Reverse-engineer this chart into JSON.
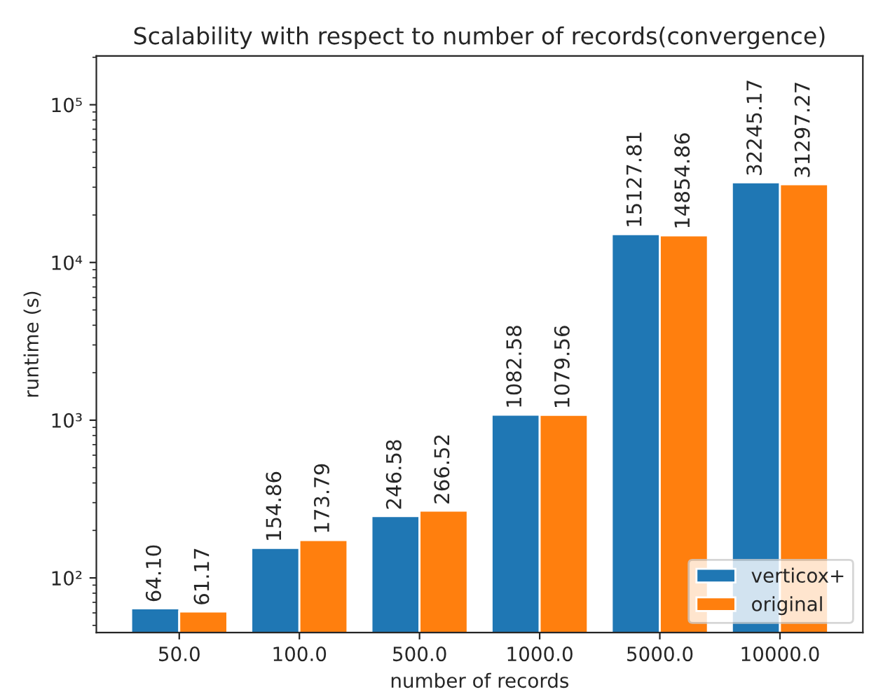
{
  "chart_data": {
    "type": "bar",
    "title": "Scalability with respect to number of records(convergence)",
    "xlabel": "number of records",
    "ylabel": "runtime (s)",
    "categories": [
      "50.0",
      "100.0",
      "500.0",
      "1000.0",
      "5000.0",
      "10000.0"
    ],
    "series": [
      {
        "name": "verticox+",
        "color": "#1f77b4",
        "values": [
          64.1,
          154.86,
          246.58,
          1082.58,
          15127.81,
          32245.17
        ],
        "value_labels": [
          "64.10",
          "154.86",
          "246.58",
          "1082.58",
          "15127.81",
          "32245.17"
        ]
      },
      {
        "name": "original",
        "color": "#ff7f0e",
        "values": [
          61.17,
          173.79,
          266.52,
          1079.56,
          14854.86,
          31297.27
        ],
        "value_labels": [
          "61.17",
          "173.79",
          "266.52",
          "1079.56",
          "14854.86",
          "31297.27"
        ]
      }
    ],
    "log": "y",
    "ylim": [
      45,
      204000
    ],
    "yticks": [
      {
        "value": 100,
        "label": "10²"
      },
      {
        "value": 1000,
        "label": "10³"
      },
      {
        "value": 10000,
        "label": "10⁴"
      },
      {
        "value": 100000,
        "label": "10⁵"
      }
    ],
    "legend": "bottom right",
    "grid": false
  }
}
